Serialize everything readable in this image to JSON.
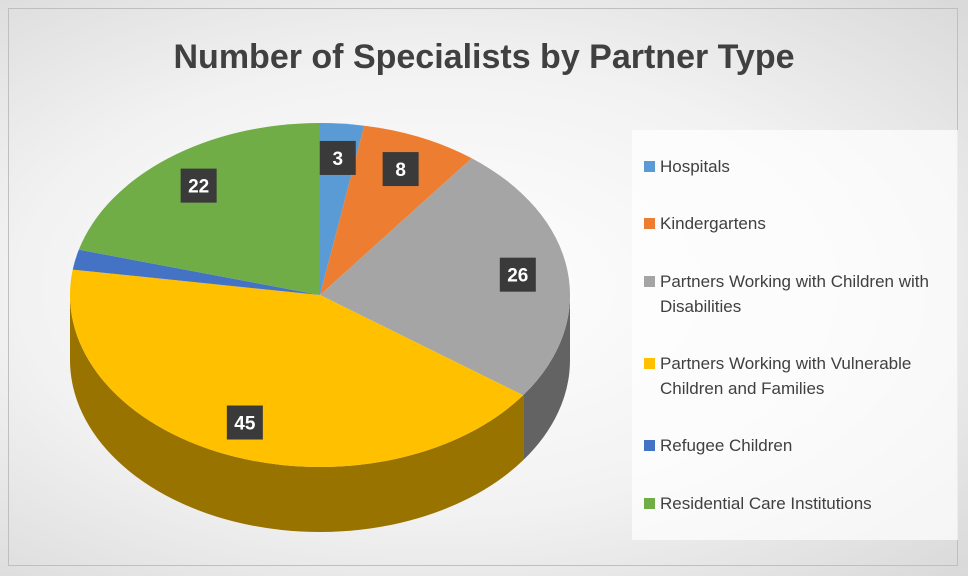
{
  "chart_data": {
    "type": "pie",
    "title": "Number of Specialists by Partner Type",
    "categories": [
      "Hospitals",
      "Kindergartens",
      "Partners Working with Children with Disabilities",
      "Partners Working with Vulnerable Children and Families",
      "Refugee Children",
      "Residential Care Institutions"
    ],
    "values": [
      3,
      8,
      26,
      45,
      2,
      22
    ],
    "value_labels": [
      "3",
      "8",
      "26",
      "45",
      null,
      "22"
    ],
    "colors": [
      "#5b9bd5",
      "#ed7d31",
      "#a5a5a5",
      "#ffc000",
      "#4472c4",
      "#70ad47"
    ],
    "legend": "right"
  }
}
